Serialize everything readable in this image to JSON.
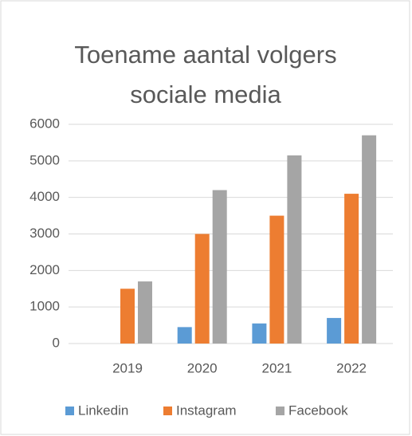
{
  "chart_data": {
    "type": "bar",
    "title": "Toename aantal volgers sociale media",
    "categories": [
      "2019",
      "2020",
      "2021",
      "2022"
    ],
    "series": [
      {
        "name": "Linkedin",
        "color": "#5b9bd5",
        "values": [
          0,
          450,
          550,
          700
        ]
      },
      {
        "name": "Instagram",
        "color": "#ed7d31",
        "values": [
          1500,
          3000,
          3500,
          4100
        ]
      },
      {
        "name": "Facebook",
        "color": "#a5a5a5",
        "values": [
          1700,
          4200,
          5150,
          5700
        ]
      }
    ],
    "ylim": [
      0,
      6000
    ],
    "yticks": [
      0,
      1000,
      2000,
      3000,
      4000,
      5000,
      6000
    ],
    "grid": true,
    "legend": "bottom"
  }
}
